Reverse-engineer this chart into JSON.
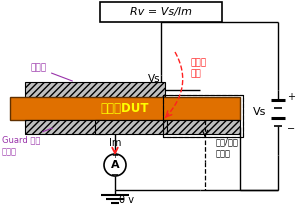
{
  "bg_color": "#ffffff",
  "label_上电极": "上电极",
  "label_vs_left": "Vs",
  "label_guard": "Guard 电极",
  "label_main": "主电极",
  "label_dut": "被测件DUT",
  "label_body_current": "体电阻\n电流",
  "label_surface_current": "表面/侧面\n漏电流",
  "label_Im": "Im",
  "label_0v": "0 v",
  "label_Vs_right": "Vs",
  "title_text": "Rv = Vs/Im",
  "dut_color": "#e07000",
  "electrode_fc": "#c0c0c0",
  "wire_color": "#000000",
  "body_current_color": "#ff2020",
  "purple_color": "#9933aa",
  "red_color": "#ff2020"
}
